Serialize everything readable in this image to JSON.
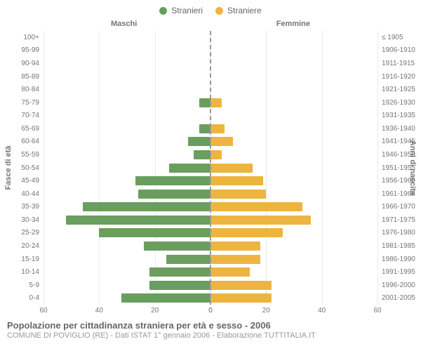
{
  "chart": {
    "type": "population-pyramid",
    "legend": [
      {
        "label": "Stranieri",
        "color": "#6a9e5e"
      },
      {
        "label": "Straniere",
        "color": "#edb540"
      }
    ],
    "column_headers": {
      "left": "Maschi",
      "right": "Femmine"
    },
    "y_axis_left": {
      "label": "Fasce di età"
    },
    "y_axis_right": {
      "label": "Anni di nascita"
    },
    "age_groups": [
      "100+",
      "95-99",
      "90-94",
      "85-89",
      "80-84",
      "75-79",
      "70-74",
      "65-69",
      "60-64",
      "55-59",
      "50-54",
      "45-49",
      "40-44",
      "35-39",
      "30-34",
      "25-29",
      "20-24",
      "15-19",
      "10-14",
      "5-9",
      "0-4"
    ],
    "birth_years": [
      "≤ 1905",
      "1906-1910",
      "1911-1915",
      "1916-1920",
      "1921-1925",
      "1926-1930",
      "1931-1935",
      "1936-1940",
      "1941-1945",
      "1946-1950",
      "1951-1955",
      "1956-1960",
      "1961-1965",
      "1966-1970",
      "1971-1975",
      "1976-1980",
      "1981-1985",
      "1986-1990",
      "1991-1995",
      "1996-2000",
      "2001-2005"
    ],
    "male_values": [
      0,
      0,
      0,
      0,
      0,
      4,
      0,
      4,
      8,
      6,
      15,
      27,
      26,
      46,
      52,
      40,
      24,
      16,
      22,
      22,
      32
    ],
    "female_values": [
      0,
      0,
      0,
      0,
      0,
      4,
      0,
      5,
      8,
      4,
      15,
      19,
      20,
      33,
      36,
      26,
      18,
      18,
      14,
      22,
      22
    ],
    "bar_colors": {
      "male": "#6a9e5e",
      "female": "#edb540"
    },
    "x_axis": {
      "max": 60,
      "ticks_left": [
        60,
        40,
        20,
        0
      ],
      "ticks_right": [
        0,
        20,
        40,
        60
      ],
      "tick_labels": [
        "60",
        "40",
        "20",
        "0",
        "0",
        "20",
        "40",
        "60"
      ]
    },
    "grid_color": "#eaeaea",
    "center_line_color": "#999999",
    "background_color": "#ffffff",
    "label_fontsize": 11,
    "tick_fontsize": 10
  },
  "footer": {
    "title": "Popolazione per cittadinanza straniera per età e sesso - 2006",
    "subtitle": "COMUNE DI POVIGLIO (RE) - Dati ISTAT 1° gennaio 2006 - Elaborazione TUTTITALIA.IT"
  }
}
